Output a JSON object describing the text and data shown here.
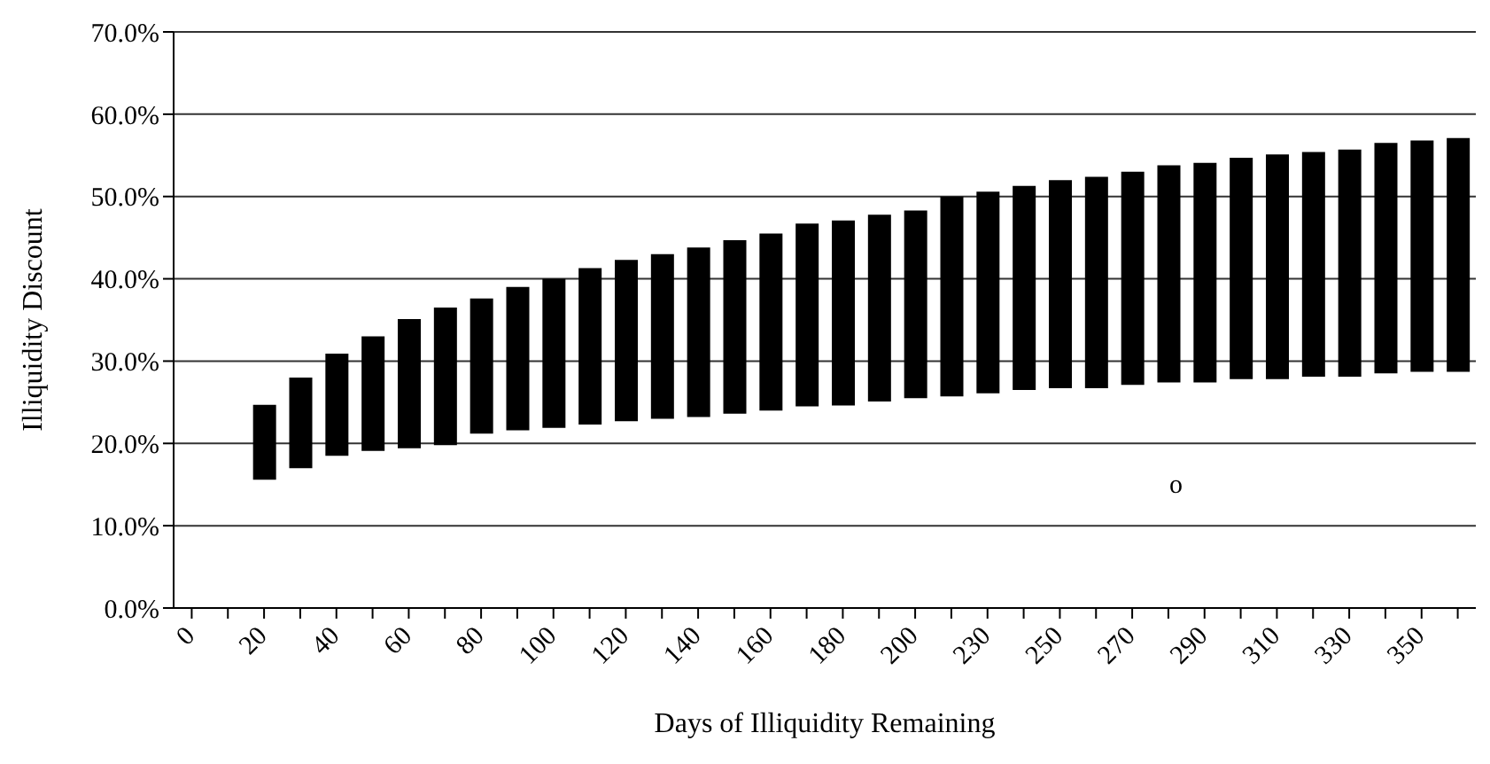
{
  "chart_data": {
    "type": "bar",
    "xlabel": "Days of Illiquidity Remaining",
    "ylabel": "Illiquidity Discount",
    "categories": [
      "0",
      null,
      "20",
      null,
      "40",
      null,
      "60",
      null,
      "80",
      null,
      "100",
      null,
      "120",
      null,
      "140",
      null,
      "160",
      null,
      "180",
      null,
      "200",
      null,
      "230",
      null,
      "250",
      null,
      "270",
      null,
      "290",
      null,
      "310",
      null,
      "330",
      null,
      "350",
      null
    ],
    "base": [
      null,
      null,
      15.6,
      17.0,
      18.5,
      19.1,
      19.4,
      19.8,
      21.2,
      21.6,
      21.9,
      22.3,
      22.7,
      23.0,
      23.2,
      23.6,
      24.0,
      24.5,
      24.6,
      25.1,
      25.5,
      25.7,
      26.1,
      26.5,
      26.7,
      26.7,
      27.1,
      27.4,
      27.4,
      27.8,
      27.8,
      28.1,
      28.1,
      28.5,
      28.7,
      28.7
    ],
    "values": [
      null,
      null,
      9.1,
      11.0,
      12.4,
      13.9,
      15.7,
      16.7,
      16.4,
      17.4,
      18.1,
      19.0,
      19.6,
      20.0,
      20.6,
      21.1,
      21.5,
      22.2,
      22.5,
      22.7,
      22.8,
      24.3,
      24.5,
      24.8,
      25.3,
      25.7,
      25.9,
      26.4,
      26.7,
      26.9,
      27.3,
      27.3,
      27.6,
      28.0,
      28.1,
      28.4
    ],
    "color": "#000000",
    "ylim": [
      0,
      70
    ],
    "yticks": [
      {
        "value": 0,
        "label": "0.0%"
      },
      {
        "value": 10,
        "label": "10.0%"
      },
      {
        "value": 20,
        "label": "20.0%"
      },
      {
        "value": 30,
        "label": "30.0%"
      },
      {
        "value": 40,
        "label": "40.0%"
      },
      {
        "value": 50,
        "label": "50.0%"
      },
      {
        "value": 60,
        "label": "60.0%"
      },
      {
        "value": 70,
        "label": "70.0%"
      }
    ],
    "grid": "y",
    "annotations": [
      "o"
    ]
  }
}
